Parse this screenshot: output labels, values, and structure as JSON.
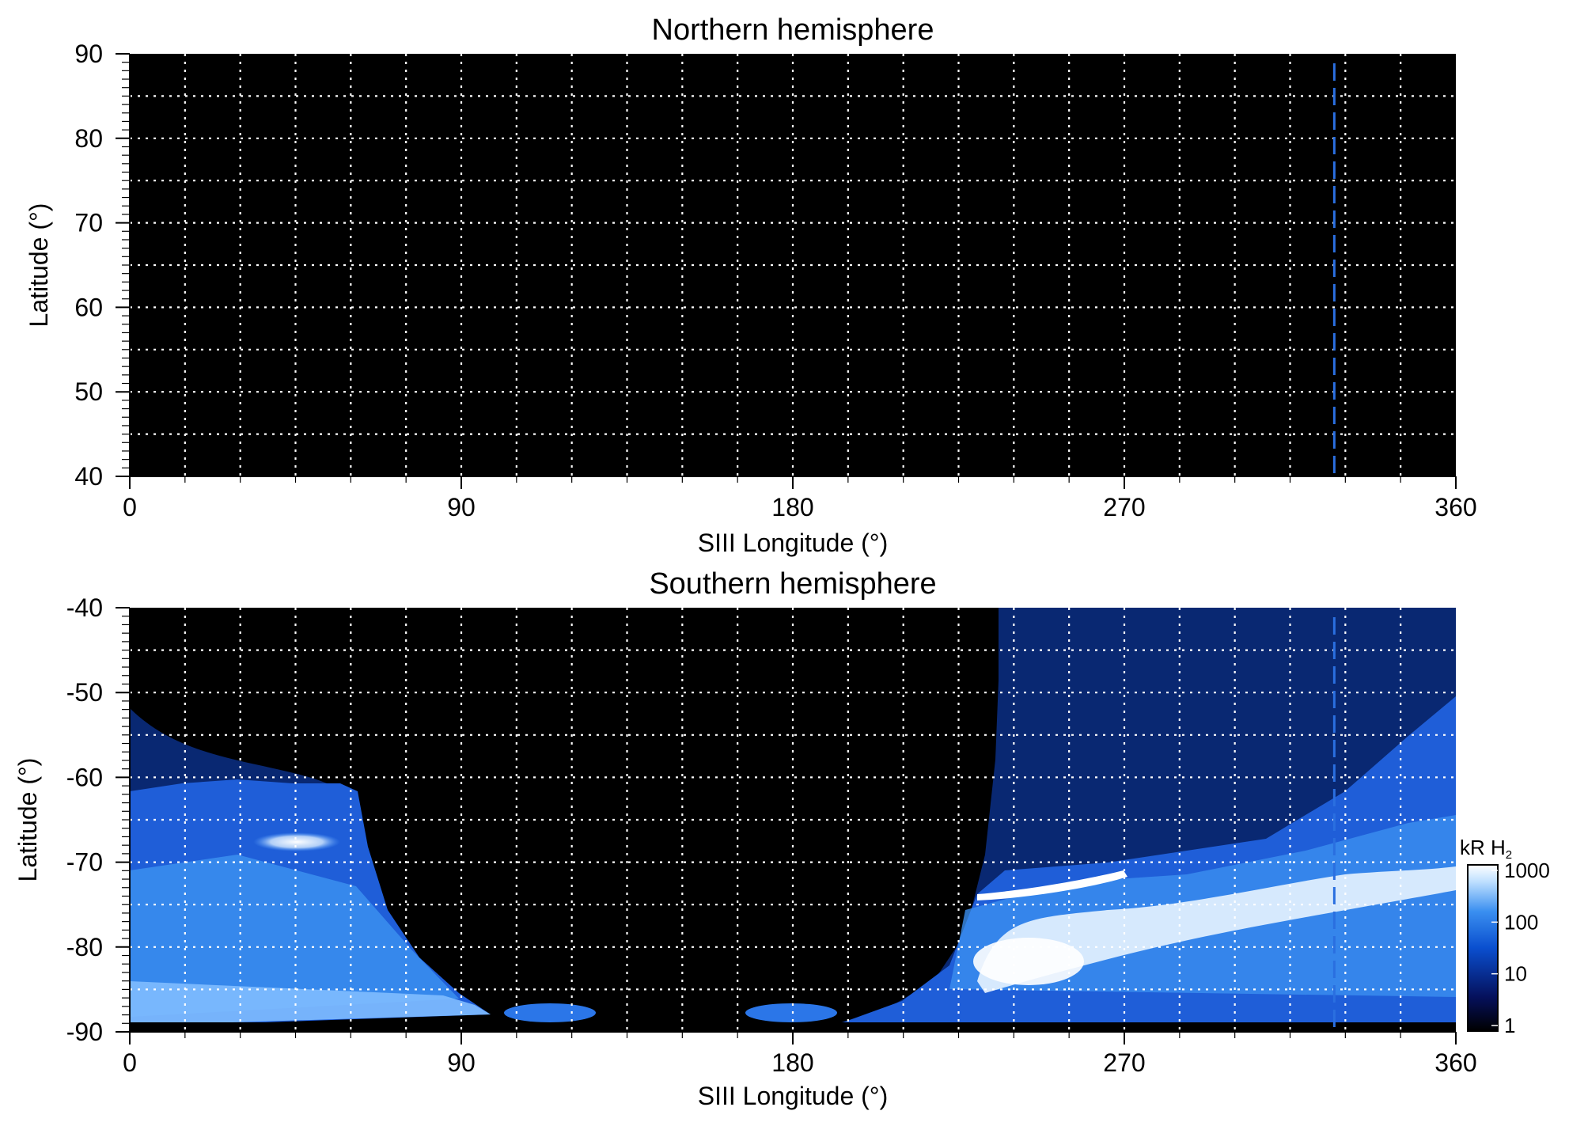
{
  "chart_data": [
    {
      "type": "heatmap",
      "title": "Northern hemisphere",
      "xlabel": "SIII Longitude (°)",
      "ylabel": "Latitude (°)",
      "xlim": [
        0,
        360
      ],
      "ylim": [
        40,
        90
      ],
      "x_ticks": [
        "0",
        "90",
        "180",
        "270",
        "360"
      ],
      "y_ticks": [
        "90",
        "80",
        "70",
        "60",
        "50",
        "40"
      ],
      "grid": true,
      "grid_style": "dotted white",
      "background": "#000000",
      "reference_longitude": 327,
      "emission": []
    },
    {
      "type": "heatmap",
      "title": "Southern hemisphere",
      "xlabel": "SIII Longitude (°)",
      "ylabel": "Latitude (°)",
      "xlim": [
        0,
        360
      ],
      "ylim": [
        -90,
        -40
      ],
      "x_ticks": [
        "0",
        "90",
        "180",
        "270",
        "360"
      ],
      "y_ticks": [
        "-40",
        "-50",
        "-60",
        "-70",
        "-80",
        "-90"
      ],
      "grid": true,
      "grid_style": "dotted white",
      "background": "#000000",
      "reference_longitude": 327,
      "emission_regions": [
        {
          "lon_range": [
            0,
            62
          ],
          "lat_range": [
            -90,
            -55
          ],
          "level": "100-1000 kR"
        },
        {
          "lon_range": [
            200,
            360
          ],
          "lat_range": [
            -90,
            -40
          ],
          "level": "10-1000 kR"
        }
      ],
      "bright_arcs": [
        {
          "lon_range": [
            35,
            55
          ],
          "lat": -67,
          "level": "~1000 kR"
        },
        {
          "lon_range": [
            230,
            270
          ],
          "lat": -74,
          "level": "~1000 kR"
        },
        {
          "lon_range": [
            230,
            345
          ],
          "lat": -80,
          "level": "~1000 kR"
        }
      ],
      "colorbar": {
        "label_main": "kR H",
        "label_sub": "2",
        "scale": "log",
        "range": [
          1,
          1000
        ],
        "ticks": [
          "1000",
          "100",
          "10",
          "1"
        ],
        "colors": [
          "#000000",
          "#05105a",
          "#0a4fcf",
          "#3a8ff0",
          "#bfe0ff",
          "#ffffff"
        ]
      }
    }
  ]
}
